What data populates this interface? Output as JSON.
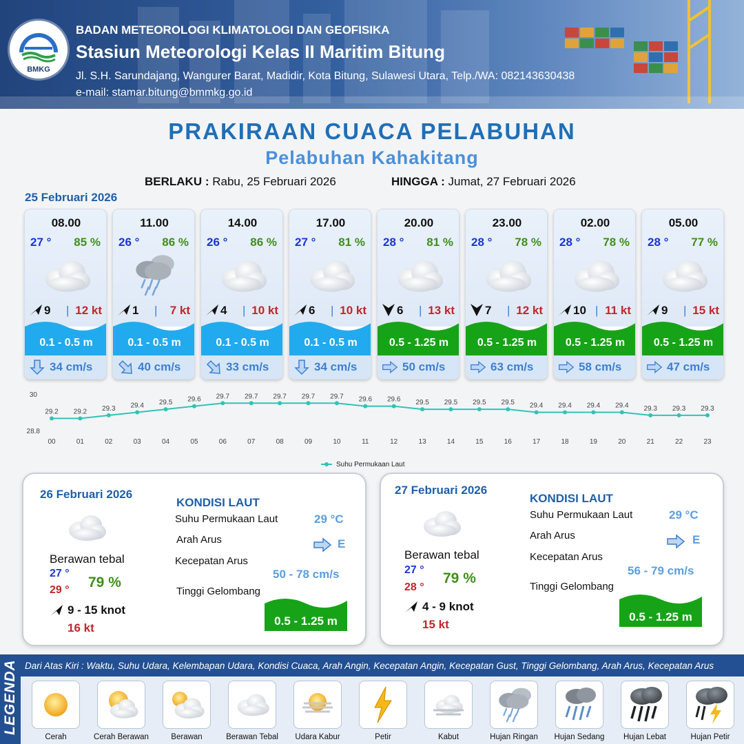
{
  "header": {
    "logo_text": "BMKG",
    "org": "BADAN METEOROLOGI KLIMATOLOGI DAN GEOFISIKA",
    "station": "Stasiun Meteorologi Kelas II Maritim Bitung",
    "address": "Jl. S.H. Sarundajang, Wangurer Barat, Madidir, Kota Bitung, Sulawesi Utara, Telp./WA: 082143630438",
    "email": "e-mail: stamar.bitung@bmmkg.go.id"
  },
  "title": "PRAKIRAAN CUACA PELABUHAN",
  "subtitle": "Pelabuhan Kahakitang",
  "validity": {
    "from_label": "BERLAKU :",
    "from_value": "Rabu, 25 Februari 2026",
    "to_label": "HINGGA :",
    "to_value": "Jumat, 27 Februari 2026"
  },
  "today_date": "25 Februari 2026",
  "hours": [
    {
      "time": "08.00",
      "temp": "27 °",
      "humidity": "85 %",
      "weather_icon": "berawan-tebal",
      "wind_dir": "ne",
      "wind_speed": "9",
      "gust": "12 kt",
      "wave": "0.1 - 0.5 m",
      "wave_level": "low",
      "current_dir": "down",
      "current_speed": "34 cm/s"
    },
    {
      "time": "11.00",
      "temp": "26 °",
      "humidity": "86 %",
      "weather_icon": "hujan-ringan",
      "wind_dir": "ne",
      "wind_speed": "1",
      "gust": "7 kt",
      "wave": "0.1 - 0.5 m",
      "wave_level": "low",
      "current_dir": "downright",
      "current_speed": "40 cm/s"
    },
    {
      "time": "14.00",
      "temp": "26 °",
      "humidity": "86 %",
      "weather_icon": "berawan-tebal",
      "wind_dir": "ne",
      "wind_speed": "4",
      "gust": "10 kt",
      "wave": "0.1 - 0.5 m",
      "wave_level": "low",
      "current_dir": "downright",
      "current_speed": "33 cm/s"
    },
    {
      "time": "17.00",
      "temp": "27 °",
      "humidity": "81 %",
      "weather_icon": "berawan-tebal",
      "wind_dir": "ne",
      "wind_speed": "6",
      "gust": "10 kt",
      "wave": "0.1 - 0.5 m",
      "wave_level": "low",
      "current_dir": "down",
      "current_speed": "34 cm/s"
    },
    {
      "time": "20.00",
      "temp": "28 °",
      "humidity": "81 %",
      "weather_icon": "berawan-tebal",
      "wind_dir": "n",
      "wind_speed": "6",
      "gust": "13 kt",
      "wave": "0.5 - 1.25 m",
      "wave_level": "moderate",
      "current_dir": "right",
      "current_speed": "50 cm/s"
    },
    {
      "time": "23.00",
      "temp": "28 °",
      "humidity": "78 %",
      "weather_icon": "berawan-tebal",
      "wind_dir": "n",
      "wind_speed": "7",
      "gust": "12 kt",
      "wave": "0.5 - 1.25 m",
      "wave_level": "moderate",
      "current_dir": "right",
      "current_speed": "63 cm/s"
    },
    {
      "time": "02.00",
      "temp": "28 °",
      "humidity": "78 %",
      "weather_icon": "berawan-tebal",
      "wind_dir": "ne",
      "wind_speed": "10",
      "gust": "11 kt",
      "wave": "0.5 - 1.25 m",
      "wave_level": "moderate",
      "current_dir": "right",
      "current_speed": "58 cm/s"
    },
    {
      "time": "05.00",
      "temp": "28 °",
      "humidity": "77 %",
      "weather_icon": "berawan-tebal",
      "wind_dir": "ne",
      "wind_speed": "9",
      "gust": "15 kt",
      "wave": "0.5 - 1.25 m",
      "wave_level": "moderate",
      "current_dir": "right",
      "current_speed": "47 cm/s"
    }
  ],
  "chart_data": {
    "type": "line",
    "x": [
      "00",
      "01",
      "02",
      "03",
      "04",
      "05",
      "06",
      "07",
      "08",
      "09",
      "10",
      "11",
      "12",
      "13",
      "14",
      "15",
      "16",
      "17",
      "18",
      "19",
      "20",
      "21",
      "22",
      "23"
    ],
    "series": [
      {
        "name": "Suhu Permukaan Laut",
        "values": [
          29.2,
          29.2,
          29.3,
          29.4,
          29.5,
          29.6,
          29.7,
          29.7,
          29.7,
          29.7,
          29.7,
          29.6,
          29.6,
          29.5,
          29.5,
          29.5,
          29.5,
          29.4,
          29.4,
          29.4,
          29.4,
          29.3,
          29.3,
          29.3
        ],
        "color": "#2ec4b6"
      }
    ],
    "ylim": [
      28.8,
      30
    ],
    "yticks": [
      "30",
      "28.8"
    ],
    "legend": "Suhu Permukaan Laut",
    "legend_position": "bottom",
    "grid": false
  },
  "days": [
    {
      "date": "26 Februari 2026",
      "condition": "Berawan tebal",
      "tmin": "27 °",
      "tmax": "29 °",
      "humidity": "79 %",
      "wind": "9  - 15 knot",
      "gust": "16 kt",
      "kondisi_title": "KONDISI LAUT",
      "sst_label": "Suhu Permukaan Laut",
      "sst_value": "29 °C",
      "dir_label": "Arah Arus",
      "dir_value": "E",
      "spd_label": "Kecepatan Arus",
      "spd_value": "50 - 78 cm/s",
      "wave_label": "Tinggi Gelombang",
      "wave_value": "0.5 - 1.25 m"
    },
    {
      "date": "27 Februari 2026",
      "condition": "Berawan tebal",
      "tmin": "27 °",
      "tmax": "28 °",
      "humidity": "79 %",
      "wind": "4  - 9 knot",
      "gust": "15 kt",
      "kondisi_title": "KONDISI LAUT",
      "sst_label": "Suhu Permukaan Laut",
      "sst_value": "29 °C",
      "dir_label": "Arah Arus",
      "dir_value": "E",
      "spd_label": "Kecepatan Arus",
      "spd_value": "56 - 79 cm/s",
      "wave_label": "Tinggi Gelombang",
      "wave_value": "0.5 - 1.25 m"
    }
  ],
  "legend": {
    "title": "LEGENDA",
    "description": "Dari Atas Kiri : Waktu, Suhu Udara, Kelembapan Udara, Kondisi Cuaca, Arah Angin, Kecepatan Angin, Kecepatan Gust, Tinggi Gelombang, Arah Arus, Kecepatan Arus",
    "items": [
      {
        "label": "Cerah",
        "icon": "sun-icon"
      },
      {
        "label": "Cerah Berawan",
        "icon": "sun-cloud-icon"
      },
      {
        "label": "Berawan",
        "icon": "partly-cloudy-icon"
      },
      {
        "label": "Berawan Tebal",
        "icon": "cloud-icon"
      },
      {
        "label": "Udara Kabur",
        "icon": "haze-icon"
      },
      {
        "label": "Petir",
        "icon": "lightning-icon"
      },
      {
        "label": "Kabut",
        "icon": "fog-icon"
      },
      {
        "label": "Hujan Ringan",
        "icon": "light-rain-icon"
      },
      {
        "label": "Hujan Sedang",
        "icon": "moderate-rain-icon"
      },
      {
        "label": "Hujan Lebat",
        "icon": "heavy-rain-icon"
      },
      {
        "label": "Hujan Petir",
        "icon": "thunderstorm-icon"
      }
    ]
  },
  "colors": {
    "wave_low": "#22aaee",
    "wave_moderate": "#17a317",
    "title": "#1f6fb6",
    "gust": "#c0262a",
    "temp": "#1a35d6",
    "humidity": "#3f8f1a"
  }
}
